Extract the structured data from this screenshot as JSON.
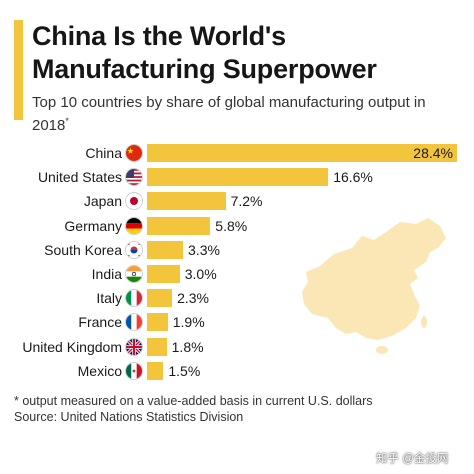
{
  "header": {
    "title": "China Is the World's Manufacturing Superpower",
    "subtitle": "Top 10 countries by share of global manufacturing output in 2018",
    "subtitle_mark": "*"
  },
  "chart_data": {
    "type": "bar",
    "orientation": "horizontal",
    "title": "China Is the World's Manufacturing Superpower",
    "subtitle": "Top 10 countries by share of global manufacturing output in 2018*",
    "categories": [
      "China",
      "United States",
      "Japan",
      "Germany",
      "South Korea",
      "India",
      "Italy",
      "France",
      "United Kingdom",
      "Mexico"
    ],
    "values": [
      28.4,
      16.6,
      7.2,
      5.8,
      3.3,
      3.0,
      2.3,
      1.9,
      1.8,
      1.5
    ],
    "value_labels": [
      "28.4%",
      "16.6%",
      "7.2%",
      "5.8%",
      "3.3%",
      "3.0%",
      "2.3%",
      "1.9%",
      "1.8%",
      "1.5%"
    ],
    "unit": "%",
    "xlim": [
      0,
      28.4
    ],
    "bar_color": "#f2c53d",
    "grid": false,
    "legend": "none"
  },
  "flags": [
    "china-flag-icon",
    "usa-flag-icon",
    "japan-flag-icon",
    "germany-flag-icon",
    "south-korea-flag-icon",
    "india-flag-icon",
    "italy-flag-icon",
    "france-flag-icon",
    "uk-flag-icon",
    "mexico-flag-icon"
  ],
  "map": {
    "icon": "china-map-icon",
    "color": "#fbe7b5"
  },
  "footer": {
    "note": "* output measured on a value-added basis in current U.S. dollars",
    "source": "Source: United Nations Statistics Division"
  },
  "watermark": "知乎 @金投网"
}
